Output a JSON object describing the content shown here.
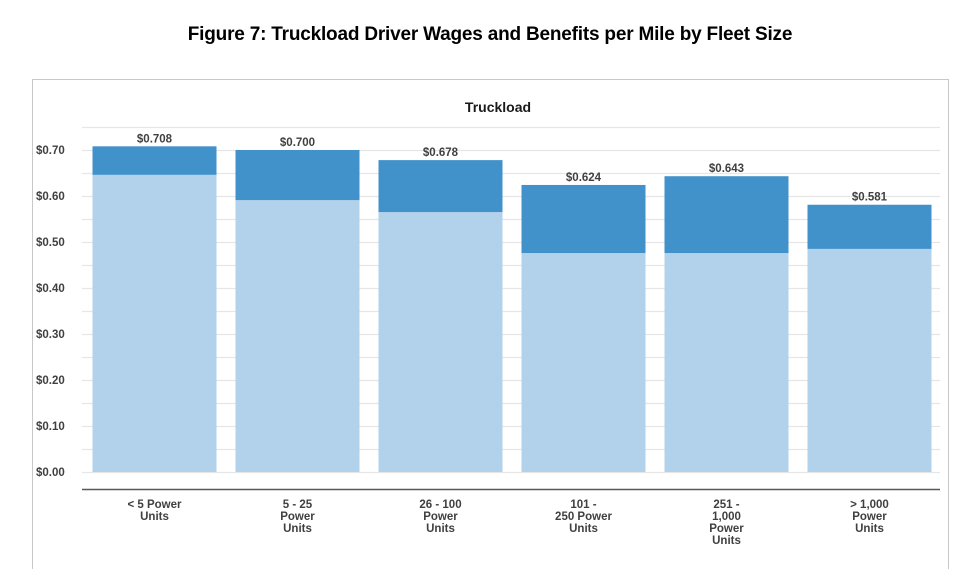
{
  "figure_title": "Figure 7: Truckload Driver Wages and Benefits per Mile by Fleet Size",
  "chart_data": {
    "type": "bar",
    "stacked": true,
    "title": "Truckload",
    "xlabel": "",
    "ylabel": "",
    "ylim": [
      0,
      0.75
    ],
    "ytick_values": [
      0,
      0.1,
      0.2,
      0.3,
      0.4,
      0.5,
      0.6,
      0.7
    ],
    "ytick_labels": [
      "$0.00",
      "$0.10",
      "$0.20",
      "$0.30",
      "$0.40",
      "$0.50",
      "$0.60",
      "$0.70"
    ],
    "grid": true,
    "legend": "none",
    "categories": [
      [
        "< 5 Power",
        "Units"
      ],
      [
        "5 - 25",
        "Power",
        "Units"
      ],
      [
        "26 - 100",
        "Power",
        "Units"
      ],
      [
        "101 -",
        "250 Power",
        "Units"
      ],
      [
        "251 -",
        "1,000",
        "Power",
        "Units"
      ],
      [
        "> 1,000",
        "Power",
        "Units"
      ]
    ],
    "series": [
      {
        "name": "Wages",
        "color": "#b2d1ea",
        "values": [
          0.646,
          0.591,
          0.565,
          0.476,
          0.476,
          0.485
        ]
      },
      {
        "name": "Benefits",
        "color": "#4191ca",
        "values": [
          0.062,
          0.109,
          0.113,
          0.148,
          0.167,
          0.096
        ]
      }
    ],
    "totals": [
      0.708,
      0.7,
      0.678,
      0.624,
      0.643,
      0.581
    ],
    "total_labels": [
      "$0.708",
      "$0.700",
      "$0.678",
      "$0.624",
      "$0.643",
      "$0.581"
    ]
  }
}
